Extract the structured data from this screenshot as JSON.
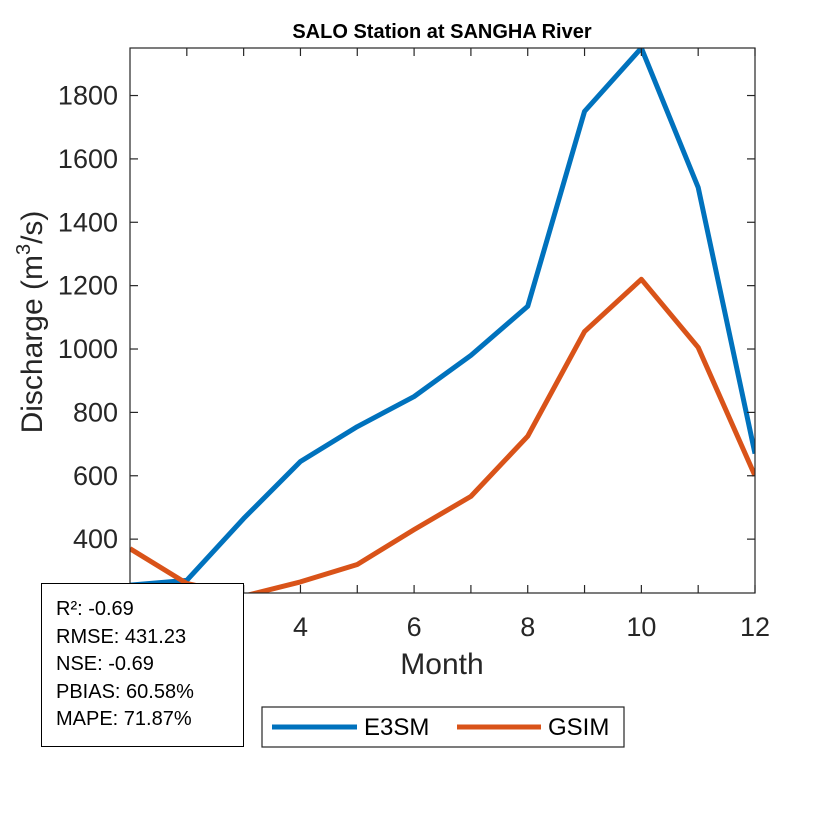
{
  "chart_data": {
    "type": "line",
    "title": "SALO  Station at  SANGHA  River",
    "xlabel": "Month",
    "ylabel_main": "Discharge (m",
    "ylabel_sup": "3",
    "ylabel_tail": "/s)",
    "xlim": [
      1,
      12
    ],
    "ylim": [
      230,
      1950
    ],
    "xticks": [
      4,
      6,
      8,
      10,
      12
    ],
    "yticks": [
      400,
      600,
      800,
      1000,
      1200,
      1400,
      1600,
      1800
    ],
    "x": [
      1,
      2,
      3,
      4,
      5,
      6,
      7,
      8,
      9,
      10,
      11,
      12
    ],
    "series": [
      {
        "name": "E3SM",
        "color": "#0072BD",
        "values": [
          255,
          270,
          465,
          645,
          755,
          850,
          980,
          1135,
          1750,
          1950,
          1510,
          670
        ]
      },
      {
        "name": "GSIM",
        "color": "#D95319",
        "values": [
          370,
          260,
          220,
          265,
          320,
          430,
          535,
          725,
          1055,
          1220,
          1005,
          600
        ]
      }
    ],
    "legend_placement": "below-right",
    "grid": false
  },
  "stats": {
    "r2": "R²: -0.69",
    "rmse": "RMSE: 431.23",
    "nse": "NSE: -0.69",
    "pbias": "PBIAS: 60.58%",
    "mape": "MAPE: 71.87%"
  }
}
